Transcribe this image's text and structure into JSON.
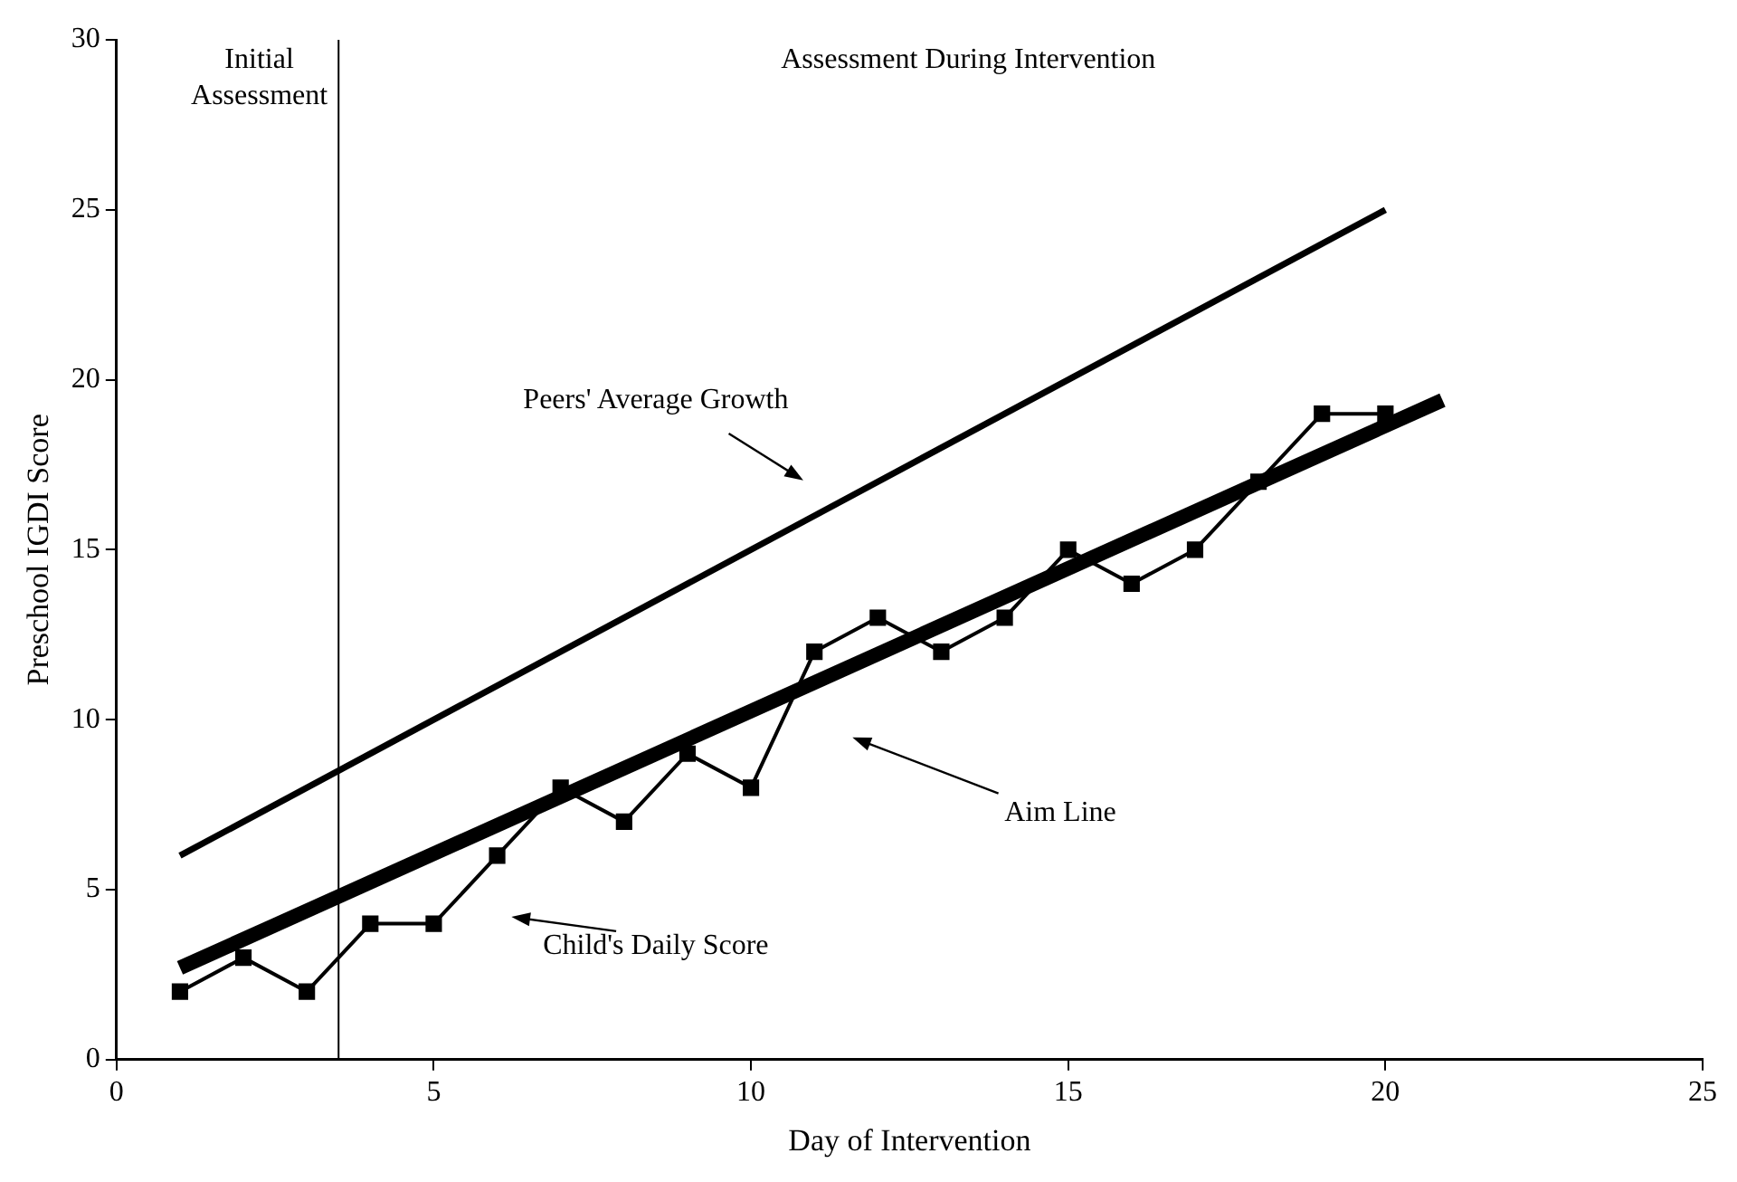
{
  "chart_data": {
    "type": "line",
    "xlabel": "Day of Intervention",
    "ylabel": "Preschool IGDI Score",
    "xlim": [
      0,
      25
    ],
    "xticks": [
      0,
      5,
      10,
      15,
      20,
      25
    ],
    "ylim": [
      0,
      30
    ],
    "yticks": [
      0,
      5,
      10,
      15,
      20,
      25,
      30
    ],
    "grid": false,
    "legend": false,
    "series": [
      {
        "color": "#000000",
        "marker": "square",
        "x": [
          1,
          2,
          3,
          4,
          5,
          6,
          7,
          8,
          9,
          10,
          11,
          12,
          13,
          14,
          15,
          16,
          17,
          18,
          19,
          20
        ],
        "values": [
          2,
          3,
          2,
          4,
          4,
          6,
          8,
          7,
          9,
          8,
          12,
          13,
          12,
          13,
          15,
          14,
          15,
          17,
          19,
          19
        ]
      },
      {
        "color": "#000000",
        "marker": "none",
        "x": [
          1,
          20
        ],
        "values": [
          6,
          25
        ]
      },
      {
        "color": "#000000",
        "marker": "none",
        "x": [
          1,
          20.9
        ],
        "values": [
          2.7,
          19.4
        ]
      }
    ],
    "ref_lines": [
      {
        "axis": "x",
        "value": 3.5,
        "color": "#000000"
      }
    ],
    "annotations": [
      "Initial Assessment",
      "Assessment During Intervention",
      "Peers' Average Growth",
      "Aim Line",
      "Child's Daily Score"
    ]
  }
}
